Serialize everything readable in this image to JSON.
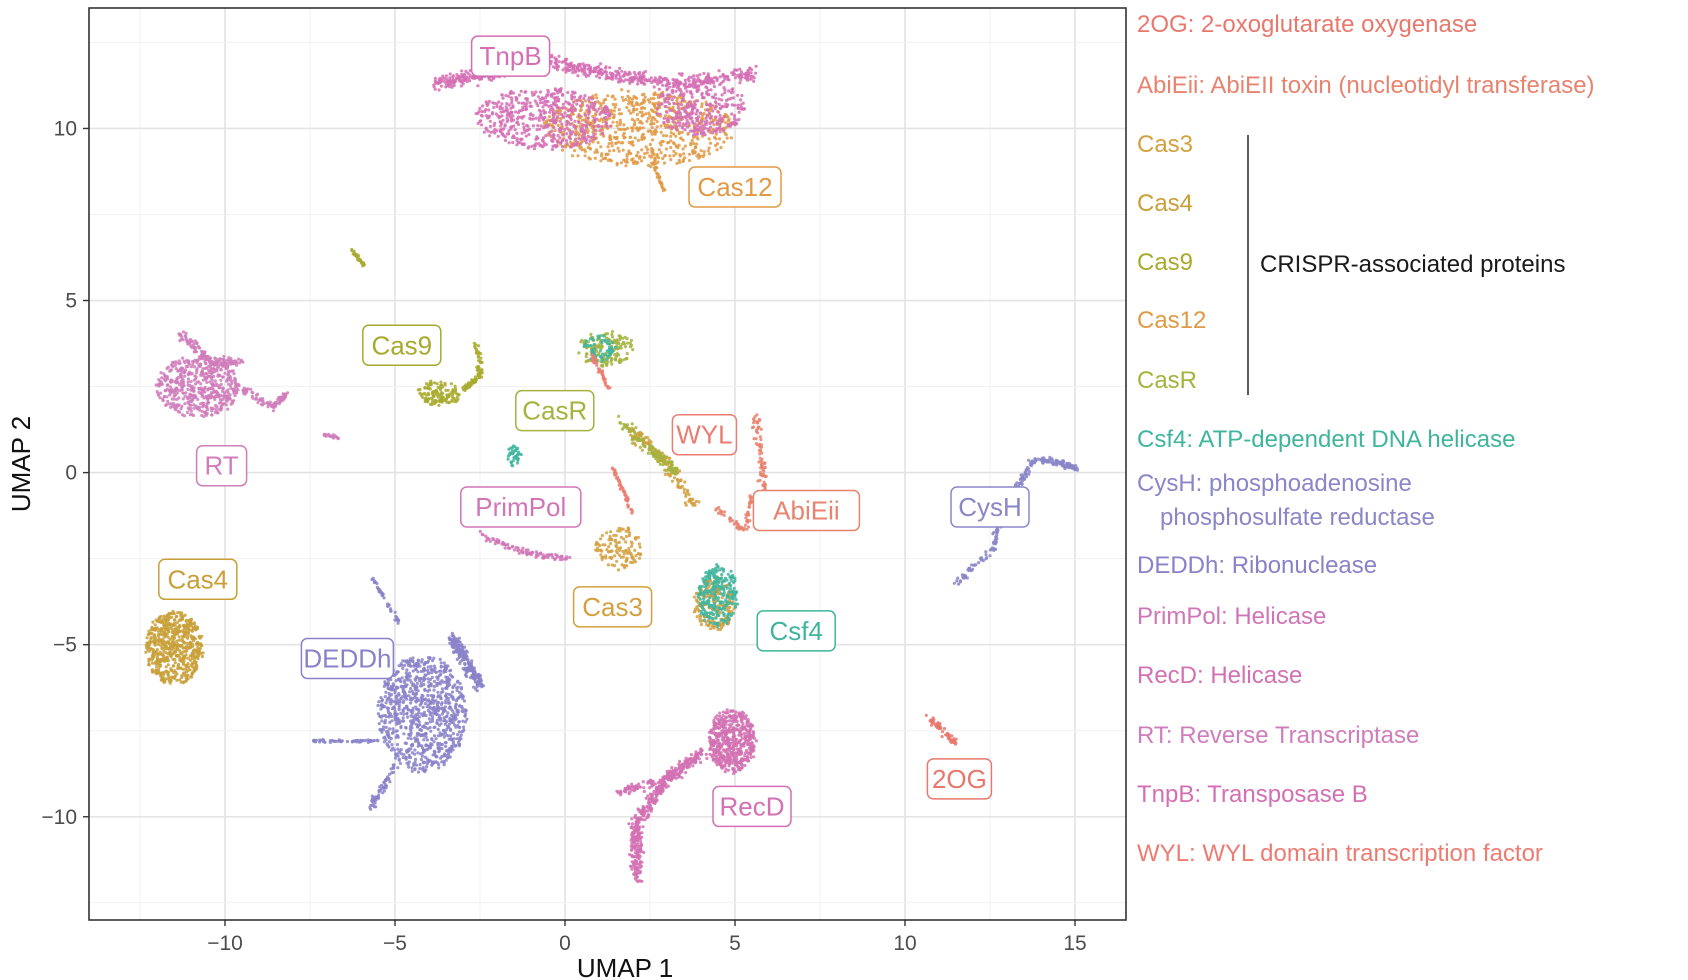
{
  "chart_data": {
    "type": "scatter",
    "title": "",
    "xlabel": "UMAP 1",
    "ylabel": "UMAP 2",
    "xlim": [
      -14,
      16.5
    ],
    "ylim": [
      -13,
      13.5
    ],
    "xticks": [
      -10,
      -5,
      0,
      5,
      10,
      15
    ],
    "xtick_labels": [
      "−10",
      "−5",
      "0",
      "5",
      "10",
      "15"
    ],
    "yticks": [
      -10,
      -5,
      0,
      5,
      10
    ],
    "ytick_labels": [
      "−10",
      "−5",
      "0",
      "5",
      "10"
    ],
    "grid": true,
    "legend_position": "right",
    "series": [
      {
        "key": "2OG",
        "color": "#e8776c",
        "regions": [
          {
            "shape": "poly",
            "pts": [
              [
                10.7,
                -7.1
              ],
              [
                11.5,
                -7.9
              ]
            ],
            "w": 0.2,
            "n": 60
          }
        ]
      },
      {
        "key": "AbiEii",
        "color": "#e7836e",
        "regions": [
          {
            "shape": "poly",
            "pts": [
              [
                5.6,
                1.6
              ],
              [
                5.8,
                0.3
              ],
              [
                5.9,
                -0.9
              ]
            ],
            "w": 0.25,
            "n": 90
          },
          {
            "shape": "poly",
            "pts": [
              [
                4.4,
                -1.0
              ],
              [
                5.3,
                -1.7
              ],
              [
                5.5,
                -0.7
              ]
            ],
            "w": 0.15,
            "n": 60
          }
        ]
      },
      {
        "key": "Cas3",
        "color": "#d4a03f",
        "regions": [
          {
            "shape": "ellipse",
            "cx": 1.6,
            "cy": -2.2,
            "rx": 0.7,
            "ry": 0.6,
            "n": 120
          },
          {
            "shape": "ellipse",
            "cx": 4.4,
            "cy": -3.8,
            "rx": 0.6,
            "ry": 0.8,
            "n": 200
          },
          {
            "shape": "poly",
            "pts": [
              [
                2.0,
                1.2
              ],
              [
                3.0,
                0.3
              ],
              [
                3.8,
                -1.0
              ]
            ],
            "w": 0.35,
            "n": 150
          }
        ]
      },
      {
        "key": "Cas4",
        "color": "#c9a038",
        "regions": [
          {
            "shape": "ellipse",
            "cx": -11.5,
            "cy": -5.1,
            "rx": 0.85,
            "ry": 1.05,
            "n": 600
          }
        ]
      },
      {
        "key": "Cas9",
        "color": "#a8aa2e",
        "regions": [
          {
            "shape": "ellipse",
            "cx": -3.7,
            "cy": 2.3,
            "rx": 0.6,
            "ry": 0.35,
            "n": 120
          },
          {
            "shape": "poly",
            "pts": [
              [
                -2.6,
                3.8
              ],
              [
                -2.5,
                2.8
              ],
              [
                -3.0,
                2.4
              ]
            ],
            "w": 0.2,
            "n": 80
          },
          {
            "shape": "poly",
            "pts": [
              [
                -6.3,
                6.5
              ],
              [
                -5.9,
                6.0
              ]
            ],
            "w": 0.1,
            "n": 30
          }
        ]
      },
      {
        "key": "Cas12",
        "color": "#e09a45",
        "regions": [
          {
            "shape": "ellipse",
            "cx": 2.2,
            "cy": 10.0,
            "rx": 2.8,
            "ry": 1.1,
            "n": 700
          },
          {
            "shape": "poly",
            "pts": [
              [
                2.6,
                9.0
              ],
              [
                2.9,
                8.2
              ]
            ],
            "w": 0.1,
            "n": 30
          }
        ]
      },
      {
        "key": "CasR",
        "color": "#a4b33e",
        "regions": [
          {
            "shape": "poly",
            "pts": [
              [
                1.6,
                1.5
              ],
              [
                2.6,
                0.6
              ],
              [
                3.3,
                0.0
              ]
            ],
            "w": 0.3,
            "n": 120
          },
          {
            "shape": "ellipse",
            "cx": 1.2,
            "cy": 3.6,
            "rx": 0.8,
            "ry": 0.5,
            "n": 150
          }
        ]
      },
      {
        "key": "Csf4",
        "color": "#3fb59d",
        "regions": [
          {
            "shape": "ellipse",
            "cx": 4.5,
            "cy": -3.6,
            "rx": 0.6,
            "ry": 0.9,
            "n": 250
          },
          {
            "shape": "ellipse",
            "cx": -1.5,
            "cy": 0.5,
            "rx": 0.2,
            "ry": 0.3,
            "n": 40
          },
          {
            "shape": "ellipse",
            "cx": 1.0,
            "cy": 3.6,
            "rx": 0.5,
            "ry": 0.4,
            "n": 60
          }
        ]
      },
      {
        "key": "CysH",
        "color": "#8a86c8",
        "regions": [
          {
            "shape": "poly",
            "pts": [
              [
                11.5,
                -3.2
              ],
              [
                12.6,
                -2.2
              ],
              [
                12.8,
                -1.1
              ],
              [
                13.4,
                -0.3
              ],
              [
                13.8,
                0.4
              ],
              [
                14.5,
                0.3
              ],
              [
                15.1,
                0.1
              ]
            ],
            "w": 0.2,
            "n": 260
          }
        ]
      },
      {
        "key": "DEDDh",
        "color": "#8a82c9",
        "regions": [
          {
            "shape": "ellipse",
            "cx": -4.2,
            "cy": -7.0,
            "rx": 1.3,
            "ry": 1.7,
            "n": 900
          },
          {
            "shape": "poly",
            "pts": [
              [
                -3.3,
                -4.8
              ],
              [
                -2.5,
                -6.2
              ]
            ],
            "w": 0.35,
            "n": 200
          },
          {
            "shape": "poly",
            "pts": [
              [
                -7.5,
                -7.8
              ],
              [
                -5.4,
                -7.8
              ]
            ],
            "w": 0.1,
            "n": 50
          },
          {
            "shape": "poly",
            "pts": [
              [
                -5.7,
                -3.0
              ],
              [
                -4.8,
                -4.5
              ]
            ],
            "w": 0.1,
            "n": 40
          },
          {
            "shape": "poly",
            "pts": [
              [
                -5.7,
                -9.7
              ],
              [
                -5.0,
                -8.5
              ]
            ],
            "w": 0.2,
            "n": 60
          }
        ]
      },
      {
        "key": "PrimPol",
        "color": "#d076b7",
        "regions": [
          {
            "shape": "poly",
            "pts": [
              [
                -2.5,
                -1.8
              ],
              [
                -1.3,
                -2.3
              ],
              [
                0.1,
                -2.5
              ]
            ],
            "w": 0.18,
            "n": 90
          }
        ]
      },
      {
        "key": "RecD",
        "color": "#d271b3",
        "regions": [
          {
            "shape": "ellipse",
            "cx": 4.9,
            "cy": -7.8,
            "rx": 0.7,
            "ry": 0.9,
            "n": 500
          },
          {
            "shape": "poly",
            "pts": [
              [
                2.1,
                -11.8
              ],
              [
                2.1,
                -10.2
              ],
              [
                3.0,
                -8.9
              ],
              [
                4.1,
                -8.1
              ]
            ],
            "w": 0.35,
            "n": 450
          },
          {
            "shape": "poly",
            "pts": [
              [
                1.6,
                -9.3
              ],
              [
                2.6,
                -9.0
              ]
            ],
            "w": 0.2,
            "n": 60
          }
        ]
      },
      {
        "key": "RT",
        "color": "#d07dbb",
        "regions": [
          {
            "shape": "ellipse",
            "cx": -10.8,
            "cy": 2.5,
            "rx": 1.2,
            "ry": 0.9,
            "n": 500
          },
          {
            "shape": "poly",
            "pts": [
              [
                -11.3,
                4.0
              ],
              [
                -10.4,
                3.2
              ],
              [
                -9.5,
                3.2
              ]
            ],
            "w": 0.25,
            "n": 120
          },
          {
            "shape": "poly",
            "pts": [
              [
                -9.8,
                2.6
              ],
              [
                -8.6,
                1.9
              ],
              [
                -8.2,
                2.3
              ]
            ],
            "w": 0.2,
            "n": 90
          },
          {
            "shape": "poly",
            "pts": [
              [
                -7.1,
                1.1
              ],
              [
                -6.6,
                1.0
              ]
            ],
            "w": 0.1,
            "n": 20
          }
        ]
      },
      {
        "key": "TnpB",
        "color": "#d56fb4",
        "regions": [
          {
            "shape": "poly",
            "pts": [
              [
                -3.8,
                11.3
              ],
              [
                -2.2,
                11.6
              ],
              [
                -0.7,
                12.0
              ],
              [
                1.2,
                11.6
              ],
              [
                3.2,
                11.3
              ],
              [
                5.6,
                11.6
              ]
            ],
            "w": 0.4,
            "n": 700
          },
          {
            "shape": "ellipse",
            "cx": -0.6,
            "cy": 10.3,
            "rx": 2.0,
            "ry": 0.9,
            "n": 500
          },
          {
            "shape": "ellipse",
            "cx": 4.0,
            "cy": 10.6,
            "rx": 1.3,
            "ry": 0.8,
            "n": 300
          }
        ]
      },
      {
        "key": "WYL",
        "color": "#ec7c72",
        "regions": [
          {
            "shape": "poly",
            "pts": [
              [
                1.4,
                0.2
              ],
              [
                2.0,
                -1.2
              ]
            ],
            "w": 0.1,
            "n": 50
          },
          {
            "shape": "poly",
            "pts": [
              [
                0.8,
                3.4
              ],
              [
                1.3,
                2.4
              ]
            ],
            "w": 0.15,
            "n": 40
          }
        ]
      }
    ],
    "cluster_labels": [
      {
        "text": "TnpB",
        "x": -1.6,
        "y": 12.1,
        "color": "#d56fb4"
      },
      {
        "text": "Cas12",
        "x": 5.0,
        "y": 8.3,
        "color": "#e09a45"
      },
      {
        "text": "Cas9",
        "x": -4.8,
        "y": 3.7,
        "color": "#a8aa2e"
      },
      {
        "text": "RT",
        "x": -10.1,
        "y": 0.2,
        "color": "#d07dbb"
      },
      {
        "text": "CasR",
        "x": -0.3,
        "y": 1.8,
        "color": "#a4b33e"
      },
      {
        "text": "WYL",
        "x": 4.1,
        "y": 1.1,
        "color": "#ec7c72"
      },
      {
        "text": "PrimPol",
        "x": -1.3,
        "y": -1.0,
        "color": "#d076b7"
      },
      {
        "text": "AbiEii",
        "x": 7.1,
        "y": -1.1,
        "color": "#e7836e"
      },
      {
        "text": "CysH",
        "x": 12.5,
        "y": -1.0,
        "color": "#8a86c8"
      },
      {
        "text": "Cas4",
        "x": -10.8,
        "y": -3.1,
        "color": "#c9a038"
      },
      {
        "text": "Cas3",
        "x": 1.4,
        "y": -3.9,
        "color": "#d4a03f"
      },
      {
        "text": "Csf4",
        "x": 6.8,
        "y": -4.6,
        "color": "#3fb59d"
      },
      {
        "text": "DEDDh",
        "x": -6.4,
        "y": -5.4,
        "color": "#8a82c9"
      },
      {
        "text": "2OG",
        "x": 11.6,
        "y": -8.9,
        "color": "#e8776c"
      },
      {
        "text": "RecD",
        "x": 5.5,
        "y": -9.7,
        "color": "#d271b3"
      }
    ],
    "legend": [
      {
        "text": "2OG: 2-oxoglutarate oxygenase",
        "color": "#e8776c"
      },
      {
        "text": "AbiEii: AbiEII toxin (nucleotidyl transferase)",
        "color": "#e7836e"
      },
      {
        "text": "Cas3",
        "color": "#d4a03f"
      },
      {
        "text": "Cas4",
        "color": "#c9a038"
      },
      {
        "text": "Cas9",
        "color": "#a8aa2e"
      },
      {
        "text": "Cas12",
        "color": "#e09a45"
      },
      {
        "text": "CasR",
        "color": "#a4b33e"
      },
      {
        "text": "Csf4: ATP-dependent DNA helicase",
        "color": "#3fb59d"
      },
      {
        "text": "CysH: phosphoadenosine",
        "color": "#8a86c8"
      },
      {
        "text": "phosphosulfate reductase",
        "color": "#8a86c8"
      },
      {
        "text": "DEDDh: Ribonuclease",
        "color": "#8a82c9"
      },
      {
        "text": "PrimPol: Helicase",
        "color": "#d076b7"
      },
      {
        "text": "RecD: Helicase",
        "color": "#d271b3"
      },
      {
        "text": "RT: Reverse Transcriptase",
        "color": "#d07dbb"
      },
      {
        "text": "TnpB: Transposase B",
        "color": "#d56fb4"
      },
      {
        "text": "WYL: WYL domain transcription factor",
        "color": "#ec7c72"
      }
    ],
    "bracket_label": "CRISPR-associated proteins"
  }
}
